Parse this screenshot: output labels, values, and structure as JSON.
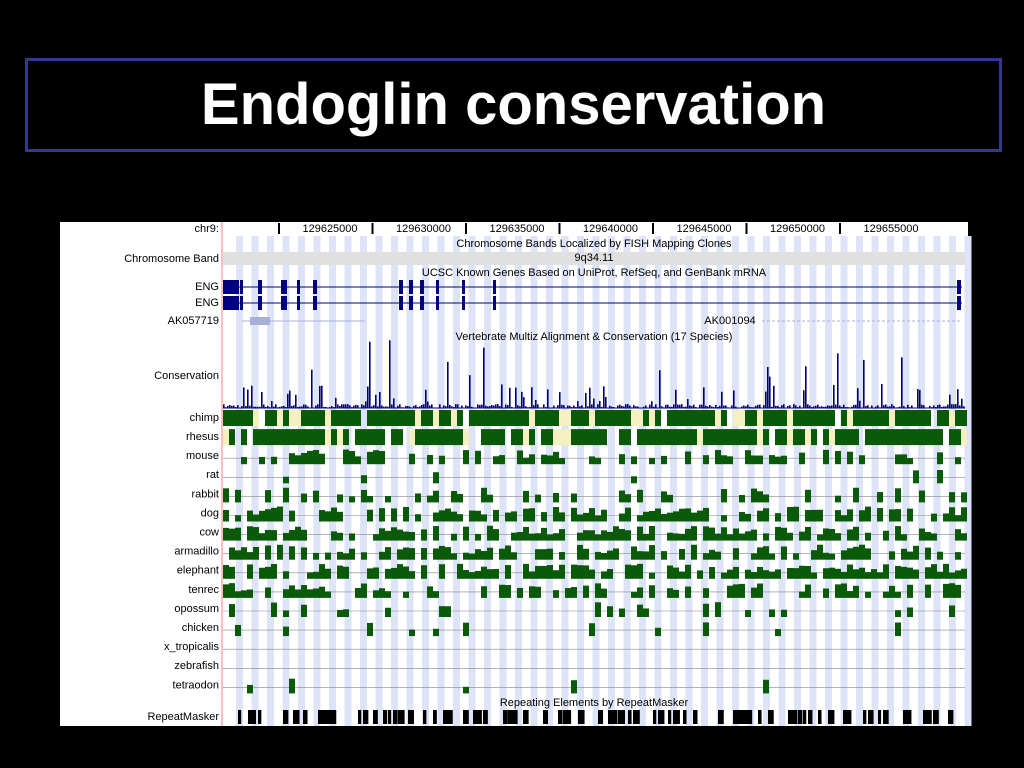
{
  "header": {
    "title": "Endoglin conservation"
  },
  "browser": {
    "position_label": "chr9:",
    "positions": [
      "129625000",
      "129630000",
      "129635000",
      "129640000",
      "129645000",
      "129650000",
      "129655000"
    ],
    "band_track": {
      "title": "Chromosome Bands Localized by FISH Mapping Clones",
      "label": "Chromosome Band",
      "band": "9q34.11"
    },
    "gene_track": {
      "title": "UCSC Known Genes Based on UniProt, RefSeq, and GenBank mRNA",
      "genes": [
        "ENG",
        "ENG"
      ],
      "mrna_left": "AK057719",
      "mrna_right": "AK001094"
    },
    "conservation_track": {
      "title": "Vertebrate Multiz Alignment & Conservation (17 Species)",
      "label": "Conservation",
      "species": [
        "chimp",
        "rhesus",
        "mouse",
        "rat",
        "rabbit",
        "dog",
        "cow",
        "armadillo",
        "elephant",
        "tenrec",
        "opossum",
        "chicken",
        "x_tropicalis",
        "zebrafish",
        "tetraodon"
      ]
    },
    "repeat_track": {
      "title": "Repeating Elements by RepeatMasker",
      "label": "RepeatMasker"
    }
  }
}
